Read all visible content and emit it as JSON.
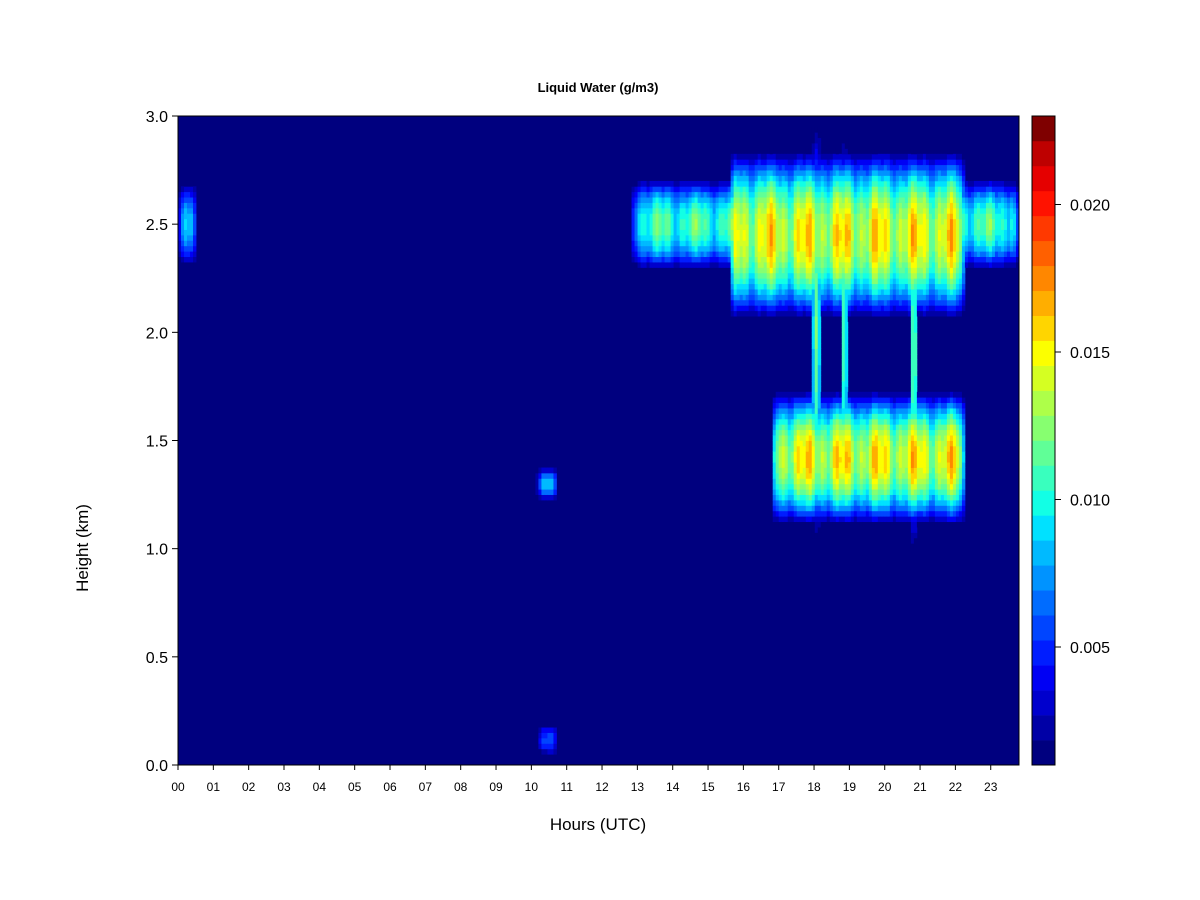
{
  "chart_data": {
    "type": "heatmap",
    "title": "Liquid Water (g/m3)",
    "xlabel": "Hours (UTC)",
    "ylabel": "Height (km)",
    "xlim": [
      0,
      23.8
    ],
    "ylim": [
      0,
      3.0
    ],
    "x_ticks": [
      0,
      1,
      2,
      3,
      4,
      5,
      6,
      7,
      8,
      9,
      10,
      11,
      12,
      13,
      14,
      15,
      16,
      17,
      18,
      19,
      20,
      21,
      22,
      23
    ],
    "x_tick_labels": [
      "00",
      "01",
      "02",
      "03",
      "04",
      "05",
      "06",
      "07",
      "08",
      "09",
      "10",
      "11",
      "12",
      "13",
      "14",
      "15",
      "16",
      "17",
      "18",
      "19",
      "20",
      "21",
      "22",
      "23"
    ],
    "y_ticks": [
      0.0,
      0.5,
      1.0,
      1.5,
      2.0,
      2.5,
      3.0
    ],
    "y_tick_labels": [
      "0.0",
      "0.5",
      "1.0",
      "1.5",
      "2.0",
      "2.5",
      "3.0"
    ],
    "background_value": 0.0,
    "colorbar": {
      "min": 0.001,
      "max": 0.023,
      "levels": 22,
      "ticks": [
        0.005,
        0.01,
        0.015,
        0.02
      ],
      "tick_labels": [
        "0.005",
        "0.010",
        "0.015",
        "0.020"
      ],
      "colors": [
        "#00007F",
        "#0000A6",
        "#0000CD",
        "#0000F4",
        "#001DFF",
        "#0045FF",
        "#006CFF",
        "#0093FF",
        "#00BAFF",
        "#00E1FF",
        "#12FFE5",
        "#39FFBE",
        "#60FF97",
        "#87FF70",
        "#AEFF49",
        "#D5FF22",
        "#FCFF00",
        "#FFD500",
        "#FFAE00",
        "#FF8700",
        "#FF6000",
        "#FF3900",
        "#FF1200",
        "#E50000",
        "#BE0000",
        "#7F0000"
      ]
    },
    "cloud_features": [
      {
        "name": "upper layer early",
        "x": [
          0.0,
          0.55
        ],
        "y_center": 2.5,
        "y_half": 0.2,
        "peak": 0.009
      },
      {
        "name": "upper layer",
        "x": [
          12.85,
          23.8
        ],
        "y_center": 2.5,
        "y_half": 0.22,
        "peak": 0.012
      },
      {
        "name": "upper layer enhanced",
        "x": [
          15.6,
          22.3
        ],
        "y_center": 2.45,
        "y_half": 0.4,
        "peak": 0.016
      },
      {
        "name": "lower layer",
        "x": [
          16.8,
          22.3
        ],
        "y_center": 1.42,
        "y_half": 0.32,
        "peak": 0.016
      },
      {
        "name": "peak column 18",
        "x": [
          17.95,
          18.2
        ],
        "y_center": 2.0,
        "y_half": 1.0,
        "peak": 0.021
      },
      {
        "name": "peak column 19",
        "x": [
          18.75,
          18.95
        ],
        "y_center": 2.0,
        "y_half": 0.95,
        "peak": 0.019
      },
      {
        "name": "column 21",
        "x": [
          20.7,
          20.95
        ],
        "y_center": 1.9,
        "y_half": 0.95,
        "peak": 0.016
      },
      {
        "name": "small patch 10h",
        "x": [
          10.15,
          10.75
        ],
        "y_center": 1.3,
        "y_half": 0.08,
        "peak": 0.009
      },
      {
        "name": "near-surface 10h",
        "x": [
          10.15,
          10.75
        ],
        "y_center": 0.12,
        "y_half": 0.08,
        "peak": 0.006
      }
    ]
  }
}
